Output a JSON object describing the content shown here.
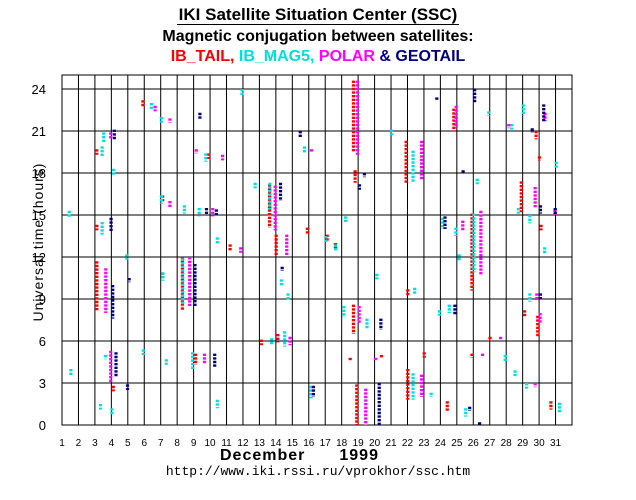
{
  "header": {
    "title": "IKI Satellite Situation Center (SSC)",
    "subtitle": "Magnetic conjugation between satellites:",
    "sat1": "IB_TAIL",
    "sep1": ",",
    "sat2": "IB_MAG5",
    "sep2": ",",
    "sat3": "POLAR",
    "amp": "&",
    "sat4": "GEOTAIL"
  },
  "footer": {
    "month": "December",
    "year": "1999",
    "url": "http://www.iki.rssi.ru/vprokhor/ssc.htm"
  },
  "chart_data": {
    "type": "scatter",
    "title": "IKI Satellite Situation Center (SSC)",
    "subtitle": "Magnetic conjugation between satellites: IB_TAIL, IB_MAG5, POLAR & GEOTAIL",
    "xlabel": "December 1999",
    "ylabel": "Universal time (hours)",
    "xlim": [
      1,
      32
    ],
    "ylim": [
      0,
      25
    ],
    "x_ticks": [
      1,
      2,
      3,
      4,
      5,
      6,
      7,
      8,
      9,
      10,
      11,
      12,
      13,
      14,
      15,
      16,
      17,
      18,
      19,
      20,
      21,
      22,
      23,
      24,
      25,
      26,
      27,
      28,
      29,
      30,
      31
    ],
    "y_ticks": [
      0,
      3,
      6,
      9,
      12,
      15,
      18,
      21,
      24
    ],
    "grid": true,
    "colors": {
      "IB_TAIL": "#ff0000",
      "IB_MAG5": "#00e0e0",
      "POLAR": "#ff00ff",
      "GEOTAIL": "#000080"
    },
    "series": [
      {
        "name": "IB_TAIL",
        "intervals": [
          [
            3.3,
            8.2,
            11.7
          ],
          [
            3.3,
            13.9,
            14.3
          ],
          [
            3.3,
            19.3,
            19.7
          ],
          [
            4.3,
            2.4,
            2.8
          ],
          [
            6.1,
            22.7,
            23.2
          ],
          [
            7.3,
            15.9,
            16.4
          ],
          [
            7.3,
            10.5,
            10.9
          ],
          [
            8.5,
            8.2,
            12.0
          ],
          [
            9.3,
            4.3,
            5.1
          ],
          [
            10.1,
            19.0,
            19.4
          ],
          [
            11.4,
            12.4,
            12.9
          ],
          [
            13.3,
            5.7,
            6.1
          ],
          [
            13.8,
            14.1,
            17.2
          ],
          [
            14.2,
            12.1,
            13.6
          ],
          [
            14.3,
            5.9,
            6.5
          ],
          [
            16.1,
            13.6,
            14.1
          ],
          [
            17.3,
            13.1,
            13.6
          ],
          [
            17.8,
            12.6,
            13.0
          ],
          [
            18.7,
            4.6,
            4.8
          ],
          [
            18.9,
            19.5,
            24.6
          ],
          [
            18.9,
            6.5,
            8.6
          ],
          [
            19.0,
            17.3,
            18.2
          ],
          [
            19.1,
            0.0,
            2.9
          ],
          [
            20.6,
            4.8,
            5.0
          ],
          [
            22.1,
            17.3,
            20.3
          ],
          [
            22.2,
            1.8,
            4.0
          ],
          [
            22.2,
            9.2,
            9.7
          ],
          [
            23.2,
            4.8,
            5.2
          ],
          [
            24.6,
            1.0,
            1.7
          ],
          [
            25.0,
            21.0,
            22.6
          ],
          [
            26.1,
            9.6,
            15.1
          ],
          [
            26.1,
            4.8,
            5.1
          ],
          [
            27.2,
            6.0,
            6.3
          ],
          [
            29.1,
            15.2,
            17.4
          ],
          [
            29.3,
            7.7,
            8.2
          ],
          [
            30.0,
            20.4,
            21.0
          ],
          [
            30.1,
            6.3,
            7.8
          ],
          [
            30.3,
            13.9,
            14.3
          ],
          [
            30.9,
            1.1,
            1.7
          ],
          [
            30.2,
            18.9,
            19.2
          ]
        ]
      },
      {
        "name": "IB_MAG5",
        "intervals": [
          [
            1.5,
            14.8,
            15.3
          ],
          [
            1.6,
            3.5,
            4.0
          ],
          [
            3.4,
            1.1,
            1.5
          ],
          [
            3.5,
            19.2,
            19.9
          ],
          [
            3.5,
            13.6,
            14.5
          ],
          [
            3.6,
            20.2,
            20.9
          ],
          [
            3.7,
            4.7,
            5.0
          ],
          [
            4.1,
            0.7,
            1.2
          ],
          [
            4.2,
            17.8,
            18.3
          ],
          [
            5.0,
            11.8,
            12.2
          ],
          [
            6.0,
            5.0,
            5.4
          ],
          [
            6.5,
            22.5,
            23.0
          ],
          [
            7.1,
            21.6,
            22.0
          ],
          [
            7.1,
            15.8,
            16.4
          ],
          [
            7.2,
            10.3,
            10.9
          ],
          [
            7.4,
            4.3,
            4.7
          ],
          [
            8.4,
            8.5,
            11.9
          ],
          [
            8.5,
            15.1,
            15.7
          ],
          [
            9.0,
            4.0,
            5.2
          ],
          [
            9.4,
            14.9,
            15.5
          ],
          [
            9.8,
            18.8,
            19.4
          ],
          [
            10.5,
            1.2,
            1.8
          ],
          [
            10.5,
            12.9,
            13.4
          ],
          [
            12.0,
            23.5,
            24.0
          ],
          [
            12.8,
            16.9,
            17.3
          ],
          [
            13.7,
            15.4,
            17.3
          ],
          [
            13.8,
            5.7,
            6.2
          ],
          [
            14.4,
            9.9,
            10.4
          ],
          [
            14.6,
            5.6,
            6.7
          ],
          [
            14.8,
            8.9,
            9.4
          ],
          [
            15.8,
            19.4,
            19.9
          ],
          [
            16.2,
            1.9,
            2.8
          ],
          [
            17.1,
            13.0,
            13.5
          ],
          [
            17.7,
            12.4,
            12.9
          ],
          [
            18.2,
            7.7,
            8.5
          ],
          [
            18.3,
            14.5,
            14.9
          ],
          [
            19.6,
            6.9,
            7.6
          ],
          [
            20.2,
            10.4,
            10.8
          ],
          [
            21.1,
            20.7,
            21.1
          ],
          [
            22.4,
            1.8,
            3.7
          ],
          [
            22.4,
            17.3,
            19.6
          ],
          [
            22.5,
            9.3,
            9.8
          ],
          [
            23.5,
            2.0,
            2.3
          ],
          [
            24.0,
            7.8,
            8.2
          ],
          [
            24.2,
            14.0,
            14.8
          ],
          [
            24.6,
            8.0,
            8.6
          ],
          [
            25.0,
            13.5,
            14.1
          ],
          [
            25.2,
            11.7,
            12.2
          ],
          [
            25.6,
            0.6,
            1.2
          ],
          [
            26.1,
            10.9,
            15.1
          ],
          [
            26.3,
            17.2,
            17.6
          ],
          [
            27.0,
            22.1,
            22.4
          ],
          [
            28.0,
            4.5,
            5.0
          ],
          [
            28.4,
            21.1,
            21.5
          ],
          [
            28.6,
            3.5,
            3.9
          ],
          [
            28.8,
            15.1,
            15.5
          ],
          [
            29.1,
            22.1,
            22.9
          ],
          [
            29.3,
            2.6,
            3.0
          ],
          [
            29.5,
            8.8,
            9.4
          ],
          [
            29.5,
            14.4,
            15.0
          ],
          [
            30.4,
            12.2,
            12.7
          ],
          [
            31.1,
            18.3,
            18.8
          ],
          [
            31.3,
            0.9,
            1.6
          ]
        ]
      },
      {
        "name": "POLAR",
        "intervals": [
          [
            3.6,
            8.0,
            11.2
          ],
          [
            3.9,
            3.0,
            5.3
          ],
          [
            3.9,
            20.4,
            20.9
          ],
          [
            6.6,
            22.4,
            22.8
          ],
          [
            7.5,
            21.6,
            21.9
          ],
          [
            7.5,
            15.5,
            16.0
          ],
          [
            8.7,
            8.5,
            12.0
          ],
          [
            9.1,
            19.4,
            19.7
          ],
          [
            9.6,
            4.4,
            5.1
          ],
          [
            10.1,
            14.9,
            15.5
          ],
          [
            10.7,
            18.9,
            19.3
          ],
          [
            11.8,
            12.3,
            12.7
          ],
          [
            13.9,
            13.9,
            17.1
          ],
          [
            14.6,
            12.1,
            13.6
          ],
          [
            14.8,
            5.7,
            6.3
          ],
          [
            16.1,
            19.5,
            19.7
          ],
          [
            18.9,
            19.3,
            24.6
          ],
          [
            19.0,
            7.3,
            8.5
          ],
          [
            19.4,
            0.0,
            2.6
          ],
          [
            20.0,
            4.6,
            4.8
          ],
          [
            22.8,
            17.5,
            20.3
          ],
          [
            22.8,
            2.0,
            3.6
          ],
          [
            24.9,
            21.2,
            22.8
          ],
          [
            25.3,
            13.9,
            14.6
          ],
          [
            26.4,
            10.7,
            15.3
          ],
          [
            26.5,
            4.9,
            5.1
          ],
          [
            27.6,
            6.1,
            6.3
          ],
          [
            28.1,
            21.2,
            21.5
          ],
          [
            29.7,
            15.5,
            17.0
          ],
          [
            29.7,
            2.7,
            3.0
          ],
          [
            29.8,
            9.0,
            9.4
          ],
          [
            30.0,
            7.3,
            8.0
          ],
          [
            30.3,
            21.7,
            22.3
          ],
          [
            30.9,
            15.0,
            15.4
          ]
        ]
      },
      {
        "name": "GEOTAIL",
        "intervals": [
          [
            3.8,
            13.8,
            14.8
          ],
          [
            3.9,
            7.6,
            10.0
          ],
          [
            4.0,
            20.4,
            21.1
          ],
          [
            4.1,
            3.4,
            5.2
          ],
          [
            4.8,
            2.5,
            2.9
          ],
          [
            4.9,
            10.2,
            10.5
          ],
          [
            8.9,
            8.5,
            11.5
          ],
          [
            9.2,
            21.8,
            22.3
          ],
          [
            9.6,
            15.0,
            15.5
          ],
          [
            10.1,
            4.1,
            5.1
          ],
          [
            10.2,
            15.0,
            15.4
          ],
          [
            14.1,
            16.0,
            17.3
          ],
          [
            14.2,
            11.0,
            11.3
          ],
          [
            15.3,
            20.5,
            21.0
          ],
          [
            16.1,
            2.0,
            2.8
          ],
          [
            18.9,
            16.8,
            17.2
          ],
          [
            19.2,
            17.7,
            18.0
          ],
          [
            20.1,
            0.0,
            3.0
          ],
          [
            20.2,
            6.8,
            7.6
          ],
          [
            23.6,
            23.2,
            23.4
          ],
          [
            24.1,
            14.0,
            14.9
          ],
          [
            24.7,
            7.9,
            8.6
          ],
          [
            25.2,
            18.0,
            18.2
          ],
          [
            25.6,
            1.0,
            1.3
          ],
          [
            25.9,
            23.0,
            24.0
          ],
          [
            26.2,
            0.0,
            0.2
          ],
          [
            29.4,
            20.9,
            21.2
          ],
          [
            29.9,
            9.0,
            9.4
          ],
          [
            29.9,
            15.1,
            15.7
          ],
          [
            30.1,
            21.7,
            22.9
          ],
          [
            30.8,
            15.0,
            15.5
          ]
        ]
      }
    ]
  }
}
